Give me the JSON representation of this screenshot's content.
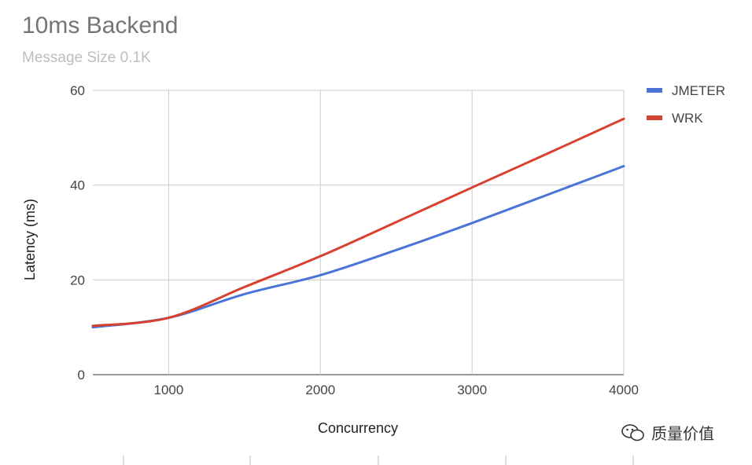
{
  "chart_data": {
    "type": "line",
    "title": "10ms Backend",
    "subtitle": "Message Size 0.1K",
    "xlabel": "Concurrency",
    "ylabel": "Latency (ms)",
    "xlim": [
      500,
      4000
    ],
    "ylim": [
      0,
      60
    ],
    "xticks": [
      1000,
      2000,
      3000,
      4000
    ],
    "yticks": [
      0,
      20,
      40,
      60
    ],
    "grid": true,
    "legend_position": "right",
    "x": [
      500,
      1000,
      1500,
      2000,
      2500,
      3000,
      3500,
      4000
    ],
    "series": [
      {
        "name": "JMETER",
        "color": "#4a74d8",
        "values": [
          10,
          12,
          17,
          21,
          26.3,
          32,
          38,
          44
        ]
      },
      {
        "name": "WRK",
        "color": "#d8412f",
        "values": [
          10.3,
          12,
          18.5,
          25,
          32.2,
          39.5,
          46.7,
          54
        ]
      }
    ]
  },
  "watermark": {
    "text": "质量价值",
    "icon": "wechat-icon"
  }
}
